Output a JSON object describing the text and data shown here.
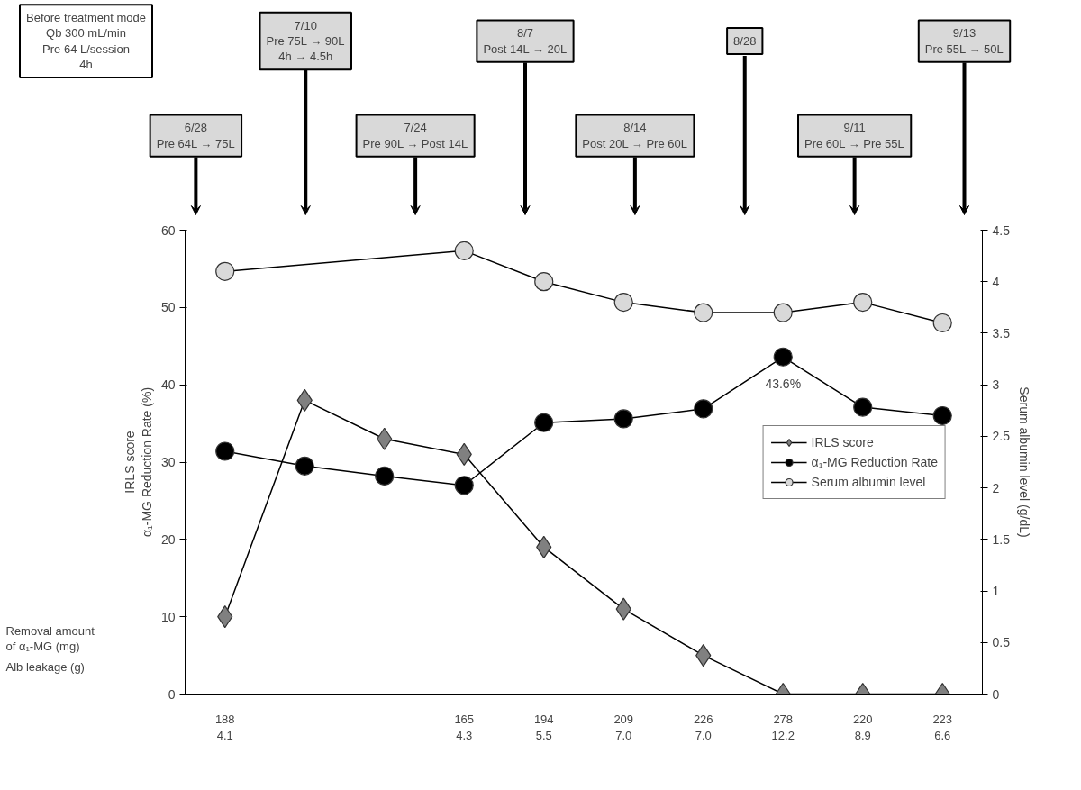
{
  "chart_data": {
    "type": "line",
    "ylabel": "IRLS score\nα₁-MG Reduction Rate (%)",
    "y2label": "Serum albumin level (g/dL)",
    "categories": [
      "188\n4.1",
      null,
      null,
      "165\n4.3",
      "194\n5.5",
      "209\n7.0",
      "226\n7.0",
      "278\n12.2",
      "220\n8.9",
      "223\n6.6"
    ],
    "series": [
      {
        "name": "IRLS score",
        "color": "#808080",
        "marker": "diamond",
        "values": [
          10,
          38,
          33,
          31,
          19,
          11,
          5,
          0,
          0,
          0
        ]
      },
      {
        "name": "α₁-MG Reduction Rate",
        "color": "#000000",
        "marker": "circle",
        "values": [
          31.4,
          29.5,
          28.2,
          27.0,
          35.1,
          35.6,
          36.9,
          43.6,
          37.1,
          36.0
        ],
        "value_labels": [
          null,
          null,
          null,
          null,
          null,
          null,
          null,
          "43.6%",
          null,
          null
        ]
      },
      {
        "name": "Serum albumin level",
        "color": "#d9d9d9",
        "marker": "circle",
        "axis": "y2",
        "values": [
          4.1,
          null,
          null,
          4.3,
          4.0,
          3.8,
          3.7,
          3.7,
          3.8,
          3.6
        ]
      }
    ],
    "ylim": [
      0,
      60
    ],
    "yticks": [
      0,
      10,
      20,
      30,
      40,
      50,
      60
    ],
    "y2lim": [
      0,
      4.5
    ],
    "y2ticks": [
      0,
      0.5,
      1,
      1.5,
      2,
      2.5,
      3,
      3.5,
      4,
      4.5
    ],
    "grid": false,
    "legend": "center right",
    "annotations": [
      "Removal amount\nof α₁-MG (mg)",
      "Alb leakage (g)",
      "Before treatment mode\nQb 300 mL/min\nPre 64 L/session\n4h",
      "6/28\nPre 64L → 75L",
      "7/10\nPre 75L → 90L\n4h → 4.5h",
      "7/24\nPre 90L → Post 14L",
      "8/7\nPost 14L → 20L",
      "8/14\nPost 20L → Pre 60L",
      "8/28",
      "9/11\nPre 60L → Pre 55L",
      "9/13\nPre 55L → 50L"
    ]
  }
}
